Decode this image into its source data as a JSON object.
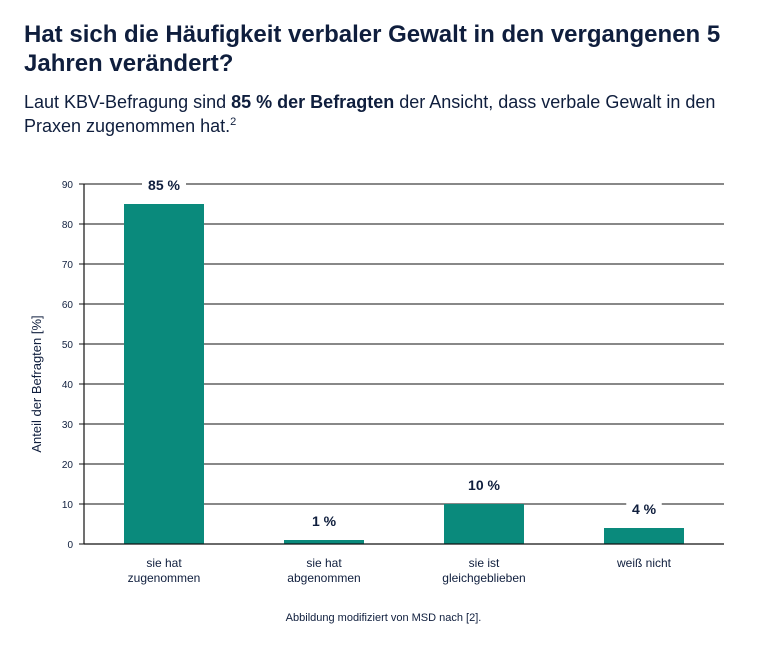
{
  "header": {
    "title": "Hat sich die Häufigkeit verbaler Gewalt in den vergangenen 5 Jahren verändert?",
    "subtitle_pre": "Laut KBV-Befragung sind ",
    "subtitle_bold": "85 % der Befragten",
    "subtitle_post": " der Ansicht, dass verbale Gewalt in den Praxen zugenommen hat.",
    "subtitle_sup": "2"
  },
  "chart_data": {
    "type": "bar",
    "categories": [
      [
        "sie hat",
        "zugenommen"
      ],
      [
        "sie hat",
        "abgenommen"
      ],
      [
        "sie ist",
        "gleichgeblieben"
      ],
      [
        "weiß nicht"
      ]
    ],
    "values": [
      85,
      1,
      10,
      4
    ],
    "data_labels": [
      "85 %",
      "1 %",
      "10 %",
      "4 %"
    ],
    "title": "",
    "xlabel": "",
    "ylabel": "Anteil der Befragten [%]",
    "ylim": [
      0,
      90
    ],
    "yticks": [
      0,
      10,
      20,
      30,
      40,
      50,
      60,
      70,
      80,
      90
    ],
    "grid": true,
    "bar_color": "#0a8a7c"
  },
  "footer": {
    "caption": "Abbildung modifiziert von MSD nach [2]."
  }
}
